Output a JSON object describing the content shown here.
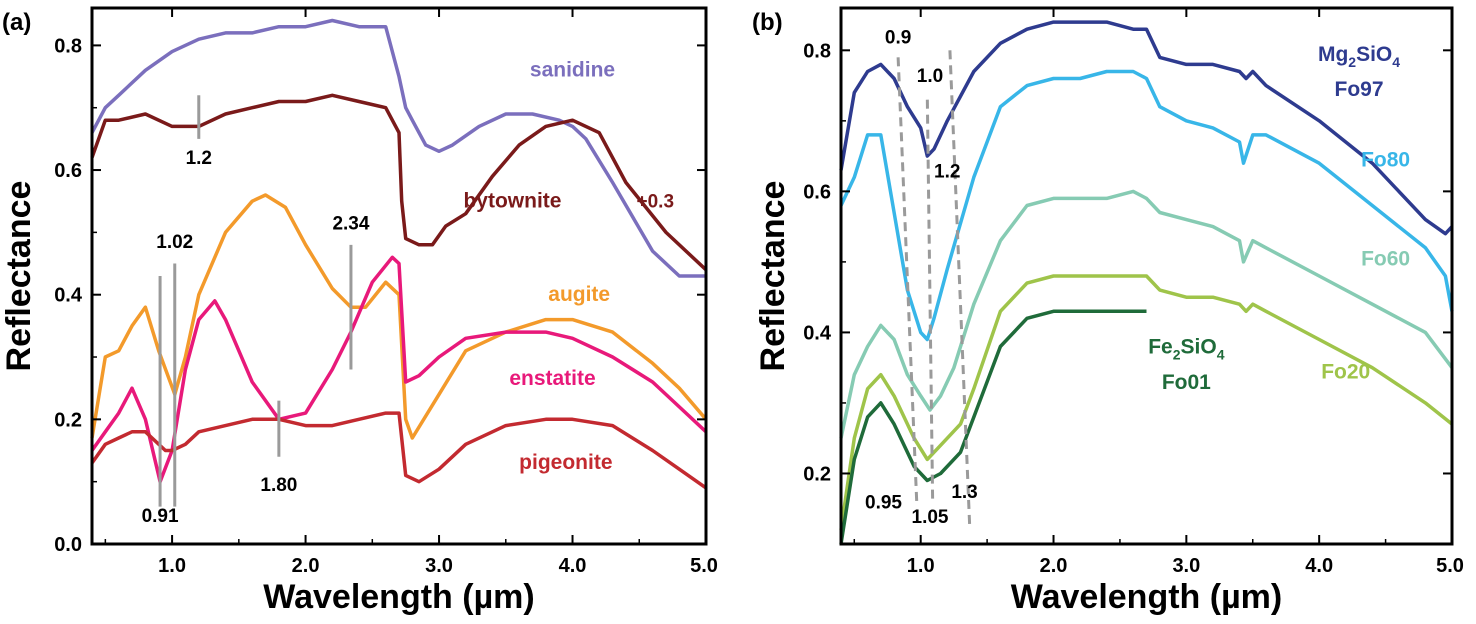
{
  "chart_data": [
    {
      "type": "line",
      "panel": "(a)",
      "xlabel": "Wavelength (µm)",
      "ylabel": "Reflectance",
      "xlim": [
        0.4,
        5.0
      ],
      "ylim": [
        0.0,
        0.86
      ],
      "xticks": [
        "1.0",
        "2.0",
        "3.0",
        "4.0",
        "5.0"
      ],
      "xtick_values": [
        1.0,
        2.0,
        3.0,
        4.0,
        5.0
      ],
      "yticks": [
        "0.0",
        "0.2",
        "0.4",
        "0.6",
        "0.8"
      ],
      "ytick_values": [
        0.0,
        0.2,
        0.4,
        0.6,
        0.8
      ],
      "grid": false,
      "series": [
        {
          "name": "sanidine",
          "color": "#7b6fbd",
          "x": [
            0.4,
            0.5,
            0.6,
            0.8,
            1.0,
            1.2,
            1.4,
            1.6,
            1.8,
            2.0,
            2.2,
            2.4,
            2.6,
            2.7,
            2.75,
            2.8,
            2.9,
            3.0,
            3.1,
            3.3,
            3.5,
            3.7,
            3.9,
            4.0,
            4.1,
            4.3,
            4.6,
            4.8,
            5.0
          ],
          "y": [
            0.66,
            0.7,
            0.72,
            0.76,
            0.79,
            0.81,
            0.82,
            0.82,
            0.83,
            0.83,
            0.84,
            0.83,
            0.83,
            0.75,
            0.7,
            0.68,
            0.64,
            0.63,
            0.64,
            0.67,
            0.69,
            0.69,
            0.68,
            0.67,
            0.65,
            0.58,
            0.47,
            0.43,
            0.43
          ]
        },
        {
          "name": "bytownite",
          "color": "#7a1a1a",
          "x": [
            0.4,
            0.5,
            0.6,
            0.8,
            1.0,
            1.2,
            1.4,
            1.6,
            1.8,
            2.0,
            2.2,
            2.4,
            2.6,
            2.7,
            2.72,
            2.75,
            2.85,
            2.95,
            3.05,
            3.2,
            3.4,
            3.6,
            3.8,
            4.0,
            4.2,
            4.4,
            4.7,
            5.0
          ],
          "y": [
            0.62,
            0.68,
            0.68,
            0.69,
            0.67,
            0.67,
            0.69,
            0.7,
            0.71,
            0.71,
            0.72,
            0.71,
            0.7,
            0.66,
            0.55,
            0.49,
            0.48,
            0.48,
            0.51,
            0.53,
            0.59,
            0.64,
            0.67,
            0.68,
            0.66,
            0.58,
            0.5,
            0.44
          ]
        },
        {
          "name": "augite",
          "color": "#f39a2b",
          "x": [
            0.4,
            0.5,
            0.6,
            0.7,
            0.8,
            0.9,
            1.02,
            1.1,
            1.2,
            1.4,
            1.6,
            1.7,
            1.85,
            2.0,
            2.2,
            2.34,
            2.45,
            2.6,
            2.7,
            2.75,
            2.8,
            3.0,
            3.2,
            3.5,
            3.8,
            4.0,
            4.3,
            4.6,
            4.8,
            5.0
          ],
          "y": [
            0.17,
            0.3,
            0.31,
            0.35,
            0.38,
            0.31,
            0.24,
            0.3,
            0.4,
            0.5,
            0.55,
            0.56,
            0.54,
            0.48,
            0.41,
            0.38,
            0.38,
            0.42,
            0.4,
            0.2,
            0.17,
            0.24,
            0.31,
            0.34,
            0.36,
            0.36,
            0.34,
            0.29,
            0.25,
            0.2
          ]
        },
        {
          "name": "enstatite",
          "color": "#e8197a",
          "x": [
            0.4,
            0.5,
            0.6,
            0.7,
            0.8,
            0.91,
            1.0,
            1.1,
            1.2,
            1.32,
            1.4,
            1.6,
            1.8,
            2.0,
            2.2,
            2.34,
            2.5,
            2.65,
            2.7,
            2.75,
            2.85,
            3.0,
            3.2,
            3.5,
            3.8,
            4.0,
            4.3,
            4.6,
            4.8,
            5.0
          ],
          "y": [
            0.15,
            0.18,
            0.21,
            0.25,
            0.2,
            0.1,
            0.15,
            0.28,
            0.36,
            0.39,
            0.36,
            0.26,
            0.2,
            0.21,
            0.28,
            0.34,
            0.42,
            0.46,
            0.45,
            0.26,
            0.27,
            0.3,
            0.33,
            0.34,
            0.34,
            0.33,
            0.3,
            0.26,
            0.22,
            0.18
          ]
        },
        {
          "name": "pigeonite",
          "color": "#c32a30",
          "x": [
            0.4,
            0.5,
            0.6,
            0.7,
            0.8,
            0.95,
            1.0,
            1.1,
            1.2,
            1.4,
            1.6,
            1.8,
            2.0,
            2.2,
            2.4,
            2.6,
            2.7,
            2.75,
            2.85,
            3.0,
            3.2,
            3.5,
            3.8,
            4.0,
            4.3,
            4.6,
            4.8,
            5.0
          ],
          "y": [
            0.13,
            0.16,
            0.17,
            0.18,
            0.18,
            0.15,
            0.15,
            0.16,
            0.18,
            0.19,
            0.2,
            0.2,
            0.19,
            0.19,
            0.2,
            0.21,
            0.21,
            0.11,
            0.1,
            0.12,
            0.16,
            0.19,
            0.2,
            0.2,
            0.19,
            0.15,
            0.12,
            0.09
          ]
        }
      ],
      "annotations": [
        {
          "text": "1.2",
          "x": 1.2,
          "y_top": 0.72,
          "y_bottom": 0.65
        },
        {
          "text": "1.02",
          "x": 1.02,
          "y_top": 0.45,
          "y_bottom": 0.06
        },
        {
          "text": "2.34",
          "x": 2.34,
          "y_top": 0.48,
          "y_bottom": 0.28
        },
        {
          "text": "0.91",
          "x": 0.91,
          "y_top": 0.43,
          "y_bottom": 0.06
        },
        {
          "text": "1.80",
          "x": 1.8,
          "y_top": 0.23,
          "y_bottom": 0.14
        },
        {
          "text": "+0.3",
          "x": 4.62,
          "y": 0.54
        }
      ]
    },
    {
      "type": "line",
      "panel": "(b)",
      "xlabel": "Wavelength (µm)",
      "ylabel": "Reflectance",
      "xlim": [
        0.4,
        5.0
      ],
      "ylim": [
        0.1,
        0.86
      ],
      "xticks": [
        "1.0",
        "2.0",
        "3.0",
        "4.0",
        "5.0"
      ],
      "xtick_values": [
        1.0,
        2.0,
        3.0,
        4.0,
        5.0
      ],
      "yticks": [
        "0.2",
        "0.4",
        "0.6",
        "0.8"
      ],
      "ytick_values": [
        0.2,
        0.4,
        0.6,
        0.8
      ],
      "grid": false,
      "series": [
        {
          "name": "Fo97",
          "color": "#2e3b8f",
          "x": [
            0.4,
            0.5,
            0.6,
            0.7,
            0.8,
            0.9,
            1.0,
            1.05,
            1.1,
            1.2,
            1.4,
            1.6,
            1.8,
            2.0,
            2.2,
            2.4,
            2.6,
            2.7,
            2.8,
            3.0,
            3.2,
            3.4,
            3.45,
            3.5,
            3.6,
            4.0,
            4.4,
            4.8,
            4.95,
            5.0
          ],
          "y": [
            0.63,
            0.74,
            0.77,
            0.78,
            0.76,
            0.72,
            0.69,
            0.65,
            0.66,
            0.7,
            0.77,
            0.81,
            0.83,
            0.84,
            0.84,
            0.84,
            0.83,
            0.83,
            0.79,
            0.78,
            0.78,
            0.77,
            0.76,
            0.77,
            0.75,
            0.7,
            0.64,
            0.56,
            0.54,
            0.55
          ]
        },
        {
          "name": "Fo80",
          "color": "#38b6e8",
          "x": [
            0.4,
            0.5,
            0.6,
            0.7,
            0.8,
            0.9,
            1.0,
            1.05,
            1.1,
            1.2,
            1.4,
            1.6,
            1.8,
            2.0,
            2.2,
            2.4,
            2.6,
            2.7,
            2.8,
            3.0,
            3.2,
            3.4,
            3.43,
            3.5,
            3.6,
            4.0,
            4.4,
            4.8,
            4.95,
            5.0
          ],
          "y": [
            0.58,
            0.62,
            0.68,
            0.68,
            0.57,
            0.46,
            0.4,
            0.39,
            0.42,
            0.49,
            0.62,
            0.72,
            0.75,
            0.76,
            0.76,
            0.77,
            0.77,
            0.76,
            0.72,
            0.7,
            0.69,
            0.67,
            0.64,
            0.68,
            0.68,
            0.64,
            0.58,
            0.52,
            0.48,
            0.43
          ]
        },
        {
          "name": "Fo60",
          "color": "#86cbb3",
          "x": [
            0.4,
            0.5,
            0.6,
            0.7,
            0.8,
            0.9,
            1.0,
            1.07,
            1.15,
            1.25,
            1.4,
            1.6,
            1.8,
            2.0,
            2.2,
            2.4,
            2.6,
            2.7,
            2.8,
            3.0,
            3.2,
            3.4,
            3.43,
            3.5,
            3.6,
            4.0,
            4.4,
            4.8,
            5.0
          ],
          "y": [
            0.25,
            0.34,
            0.38,
            0.41,
            0.39,
            0.34,
            0.31,
            0.29,
            0.31,
            0.35,
            0.44,
            0.53,
            0.58,
            0.59,
            0.59,
            0.59,
            0.6,
            0.59,
            0.57,
            0.56,
            0.55,
            0.53,
            0.5,
            0.53,
            0.52,
            0.48,
            0.44,
            0.4,
            0.35
          ]
        },
        {
          "name": "Fo20",
          "color": "#9fc44a",
          "x": [
            0.4,
            0.5,
            0.6,
            0.7,
            0.8,
            0.95,
            1.05,
            1.15,
            1.3,
            1.4,
            1.6,
            1.8,
            2.0,
            2.2,
            2.4,
            2.6,
            2.7,
            2.8,
            3.0,
            3.2,
            3.4,
            3.45,
            3.5,
            3.6,
            4.0,
            4.4,
            4.8,
            5.0
          ],
          "y": [
            0.12,
            0.25,
            0.32,
            0.34,
            0.31,
            0.25,
            0.22,
            0.24,
            0.27,
            0.32,
            0.43,
            0.47,
            0.48,
            0.48,
            0.48,
            0.48,
            0.48,
            0.46,
            0.45,
            0.45,
            0.44,
            0.43,
            0.44,
            0.43,
            0.39,
            0.35,
            0.3,
            0.27
          ]
        },
        {
          "name": "Fo01",
          "color": "#1f6b3a",
          "x": [
            0.4,
            0.5,
            0.6,
            0.7,
            0.8,
            0.95,
            1.05,
            1.15,
            1.3,
            1.4,
            1.6,
            1.8,
            2.0,
            2.2,
            2.4,
            2.6,
            2.7
          ],
          "y": [
            0.1,
            0.22,
            0.28,
            0.3,
            0.27,
            0.21,
            0.19,
            0.2,
            0.23,
            0.28,
            0.38,
            0.42,
            0.43,
            0.43,
            0.43,
            0.43,
            0.43
          ]
        }
      ],
      "series_labels": [
        {
          "text": "Fo97",
          "color": "#2e3b8f",
          "x": 4.3,
          "y": 0.735
        },
        {
          "text": "Fo80",
          "color": "#38b6e8",
          "x": 4.5,
          "y": 0.635
        },
        {
          "text": "Fo60",
          "color": "#86cbb3",
          "x": 4.5,
          "y": 0.495
        },
        {
          "text": "Fo20",
          "color": "#9fc44a",
          "x": 4.2,
          "y": 0.335
        },
        {
          "text": "Fo01",
          "color": "#1f6b3a",
          "x": 3.0,
          "y": 0.32
        }
      ],
      "formulas": [
        {
          "prefix": "Mg",
          "sub1": "2",
          "mid": "SiO",
          "sub2": "4",
          "color": "#2e3b8f",
          "x": 4.3,
          "y": 0.785
        },
        {
          "prefix": "Fe",
          "sub1": "2",
          "mid": "SiO",
          "sub2": "4",
          "color": "#1f6b3a",
          "x": 3.0,
          "y": 0.37
        }
      ],
      "annotations": [
        {
          "text": "0.9",
          "x": 0.83,
          "y": 0.81
        },
        {
          "text": "1.0",
          "x": 1.07,
          "y": 0.755
        },
        {
          "text": "1.2",
          "x": 1.2,
          "y": 0.62
        },
        {
          "text": "0.95",
          "x": 0.72,
          "y": 0.15
        },
        {
          "text": "1.05",
          "x": 1.07,
          "y": 0.13
        },
        {
          "text": "1.3",
          "x": 1.33,
          "y": 0.165
        }
      ],
      "dashed_lines": [
        {
          "x1": 0.83,
          "y1": 0.79,
          "x2": 0.97,
          "y2": 0.16
        },
        {
          "x1": 1.05,
          "y1": 0.73,
          "x2": 1.09,
          "y2": 0.16
        },
        {
          "x1": 1.22,
          "y1": 0.8,
          "x2": 1.37,
          "y2": 0.12
        }
      ]
    }
  ],
  "labels_a": {
    "sanidine": "sanidine",
    "bytownite": "bytownite",
    "augite": "augite",
    "enstatite": "enstatite",
    "pigeonite": "pigeonite"
  }
}
